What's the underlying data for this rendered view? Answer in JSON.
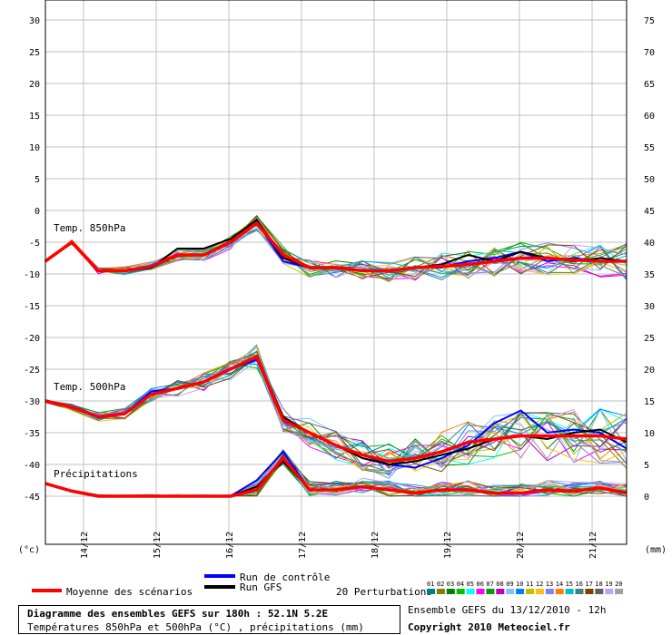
{
  "footer": {
    "title": "Diagramme des ensembles GEFS sur 180h : 52.1N 5.2E",
    "subtitle": "Températures 850hPa et 500hPa (°C) , précipitations (mm)",
    "ensemble_info": "Ensemble GEFS du 13/12/2010 - 12h",
    "copyright": "Copyright 2010 Meteociel.fr"
  },
  "chart_data": {
    "type": "line",
    "left_unit": "(°c)",
    "right_unit": "(mm)",
    "left_ticks": [
      "30",
      "25",
      "20",
      "15",
      "10",
      "5",
      "0",
      "-5",
      "-10",
      "-15",
      "-20",
      "-25",
      "-30",
      "-35",
      "-40",
      "-45"
    ],
    "right_ticks": [
      "75",
      "70",
      "65",
      "60",
      "55",
      "50",
      "45",
      "40",
      "35",
      "30",
      "25",
      "20",
      "15",
      "10",
      "5",
      "0"
    ],
    "ylim_temp": [
      -45,
      30
    ],
    "ylim_precip": [
      0,
      75
    ],
    "x_labels": [
      "14/12",
      "15/12",
      "16/12",
      "17/12",
      "18/12",
      "19/12",
      "20/12",
      "21/12"
    ],
    "panel_labels": [
      "Temp. 850hPa",
      "Temp. 500hPa",
      "Précipitations"
    ],
    "legend": {
      "mean": "Moyenne des scénarios",
      "control": "Run de contrôle",
      "gfs": "Run GFS",
      "perturbations": "20 Perturbations",
      "perturbation_ids": [
        "01",
        "02",
        "03",
        "04",
        "05",
        "06",
        "07",
        "08",
        "09",
        "10",
        "11",
        "12",
        "13",
        "14",
        "15",
        "16",
        "17",
        "18",
        "19",
        "20"
      ]
    },
    "colors": {
      "mean": "#ff0000",
      "control": "#0000ff",
      "gfs": "#000000",
      "grid": "#c0c0c0",
      "perturbations": [
        "#008080",
        "#808000",
        "#008000",
        "#00c000",
        "#00ffff",
        "#ff00ff",
        "#00a000",
        "#c000c0",
        "#80c0ff",
        "#0080ff",
        "#c0c000",
        "#ffc000",
        "#8080ff",
        "#ff8000",
        "#00c0c0",
        "#408080",
        "#804000",
        "#606060",
        "#c0a0ff",
        "#a0a0a0"
      ]
    },
    "t850": {
      "mean": [
        -8,
        -5,
        -9.5,
        -9.5,
        -8.8,
        -7,
        -7,
        -5,
        -2,
        -7,
        -9,
        -9,
        -9.5,
        -9.5,
        -9,
        -8.8,
        -8.5,
        -8,
        -7.5,
        -7.5,
        -7.8,
        -8,
        -8
      ],
      "control": [
        -8,
        -5,
        -9.5,
        -9.5,
        -9,
        -7,
        -7,
        -5,
        -1.8,
        -8,
        -9,
        -9,
        -9.5,
        -9.5,
        -9,
        -9,
        -8,
        -7.5,
        -6.5,
        -8,
        -7.5,
        -8,
        -8
      ],
      "gfs": [
        -8,
        -5,
        -9.5,
        -9.5,
        -9,
        -6,
        -6,
        -4.5,
        -1.5,
        -7.5,
        -9,
        -9,
        -9.5,
        -9.5,
        -9,
        -8.5,
        -7,
        -8,
        -6.5,
        -7.5,
        -8,
        -7.5,
        -8
      ]
    },
    "t500": {
      "mean": [
        -30,
        -31,
        -32.5,
        -32,
        -29,
        -28,
        -27,
        -25,
        -23,
        -33,
        -35,
        -37,
        -38.5,
        -39.5,
        -39,
        -38,
        -36.5,
        -36,
        -35.5,
        -35.5,
        -35.5,
        -35.5,
        -36
      ],
      "control": [
        -30,
        -31,
        -32.5,
        -32,
        -28.5,
        -28,
        -27,
        -25,
        -23.5,
        -33,
        -35,
        -37,
        -38.5,
        -40,
        -40.5,
        -39,
        -37,
        -33.5,
        -31.5,
        -35,
        -34.5,
        -35,
        -37.5
      ],
      "gfs": [
        -30,
        -31,
        -32.5,
        -32,
        -29,
        -28,
        -27,
        -25,
        -23,
        -32.5,
        -35,
        -37,
        -39,
        -40,
        -39.5,
        -38.5,
        -37.5,
        -36,
        -35.5,
        -36,
        -35,
        -34.5,
        -36.5
      ]
    },
    "precip": {
      "mean": [
        2,
        0.8,
        0,
        0,
        0,
        0,
        0,
        0,
        1,
        6,
        1,
        1,
        1.5,
        1,
        0.5,
        1,
        1,
        0.5,
        0.5,
        1,
        0.8,
        1.3,
        0.5
      ],
      "control": [
        2,
        0.8,
        0,
        0,
        0,
        0,
        0,
        0,
        2.5,
        7,
        1,
        1,
        1.5,
        1,
        0.5,
        1,
        1,
        0.5,
        0.5,
        1,
        0.8,
        1.3,
        0.5
      ],
      "gfs": [
        2,
        0.8,
        0,
        0,
        0,
        0,
        0,
        0,
        1.5,
        5.5,
        1,
        1,
        1.5,
        1,
        0.5,
        1,
        1,
        0.5,
        0.5,
        1,
        0.8,
        1.3,
        0.5
      ]
    }
  }
}
